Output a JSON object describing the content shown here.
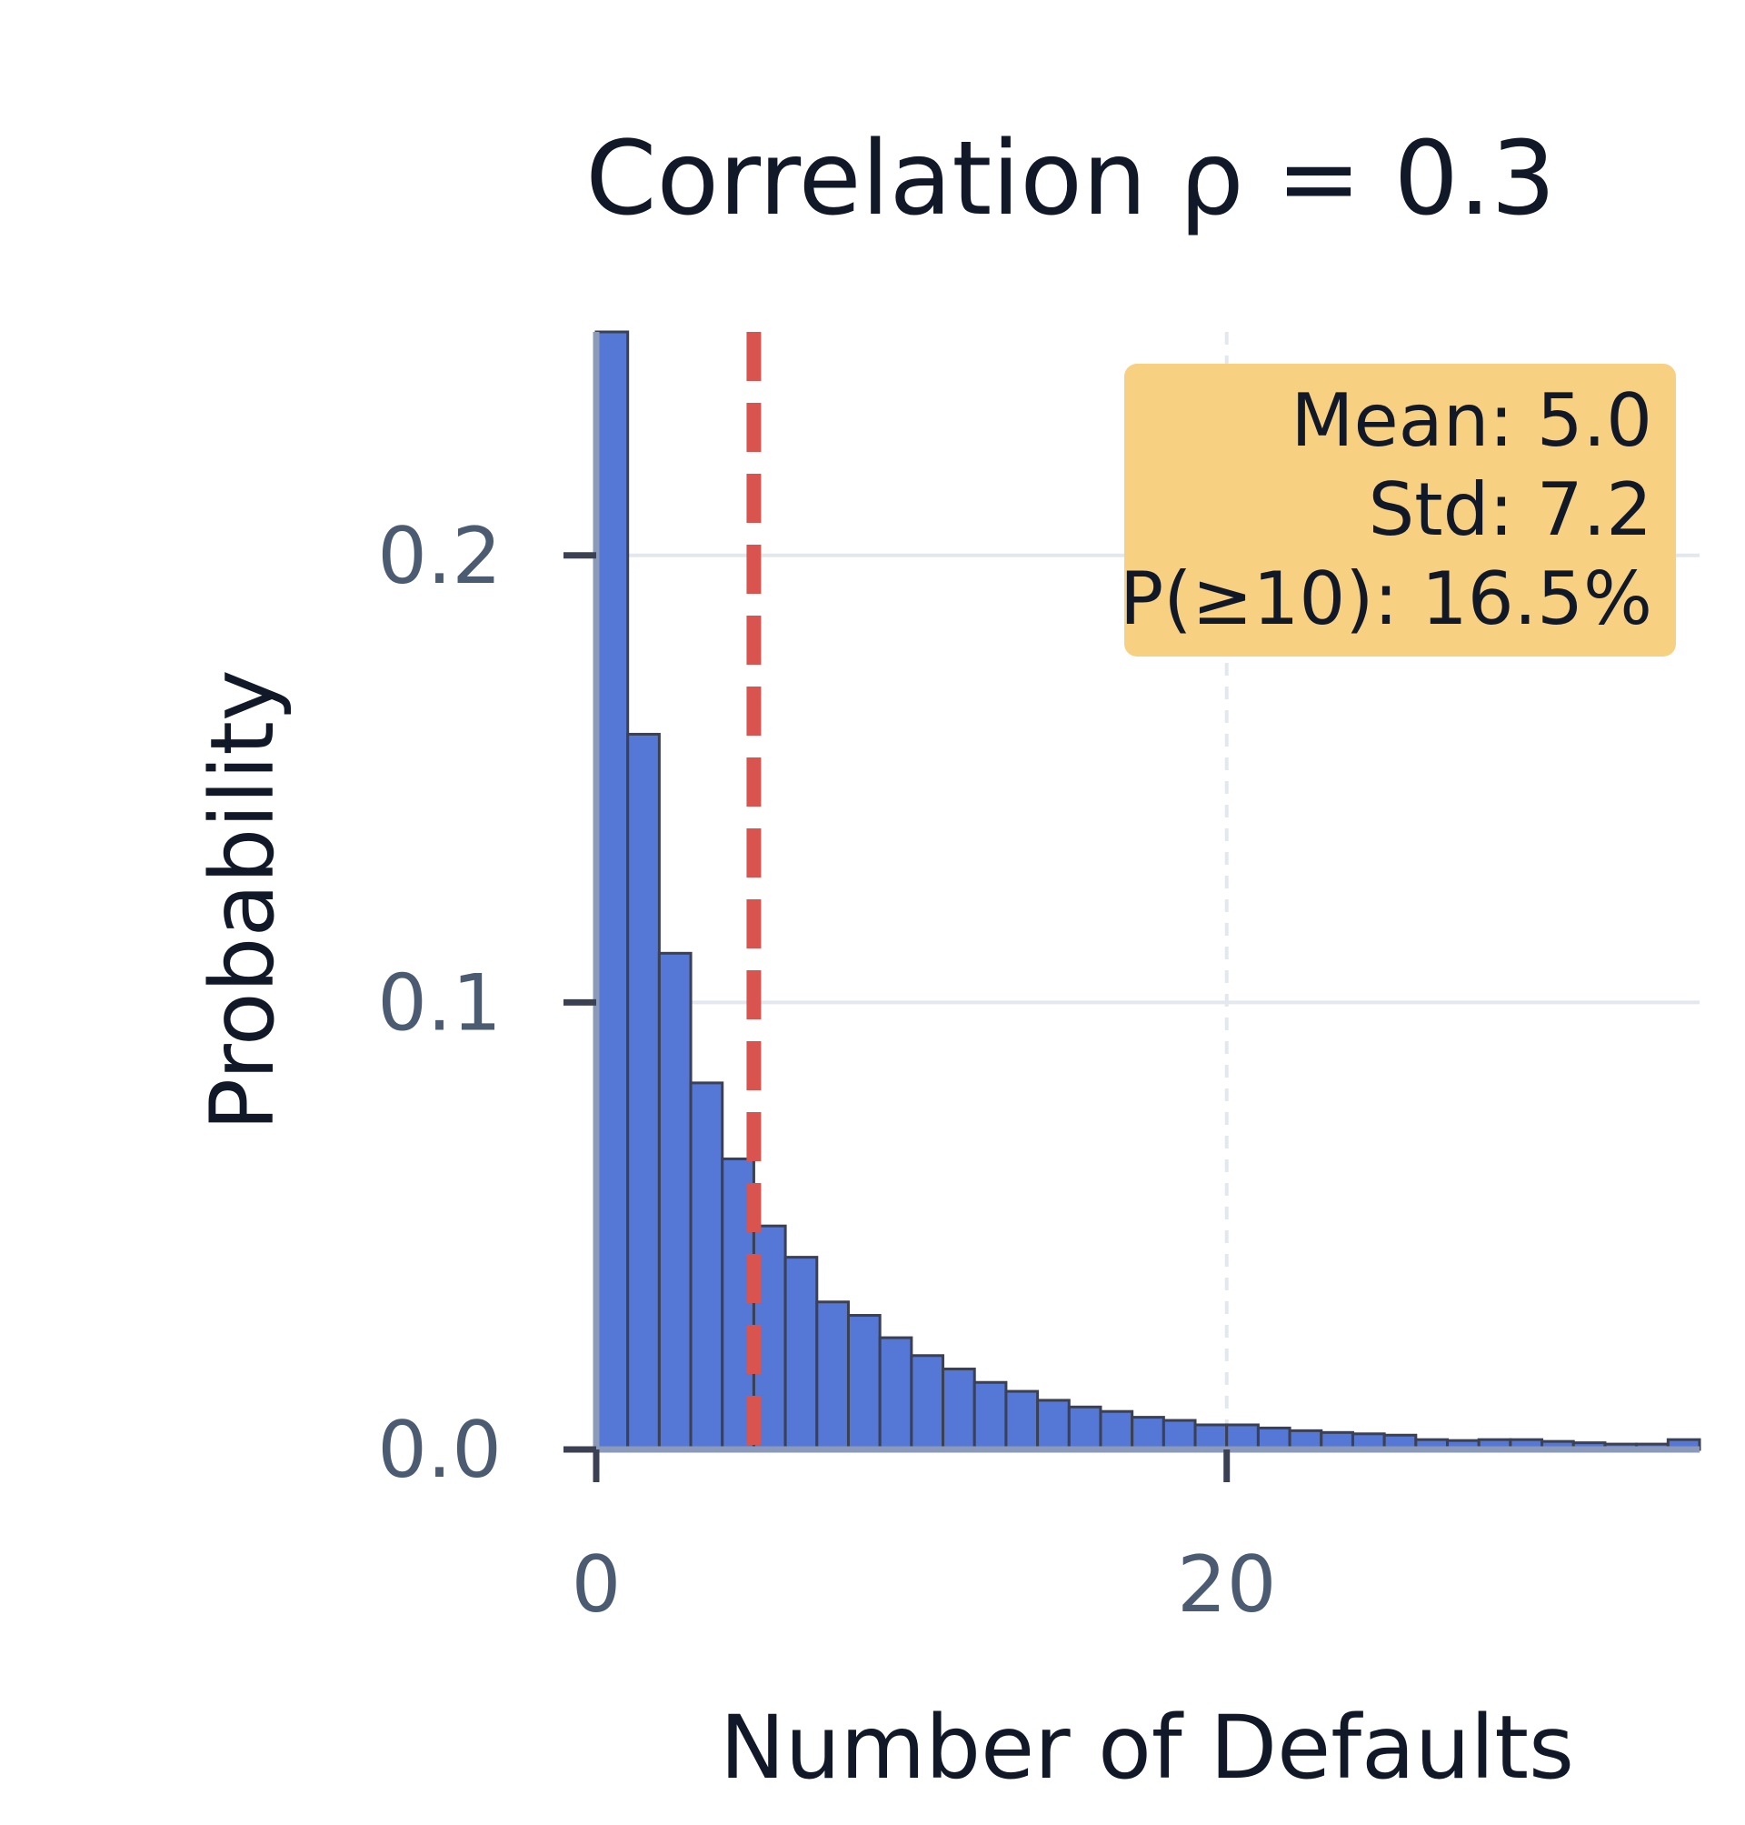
{
  "chart_data": {
    "type": "bar",
    "title": "Correlation ρ = 0.3",
    "xlabel": "Number of Defaults",
    "ylabel": "Probability",
    "xlim": [
      0,
      35
    ],
    "ylim": [
      0,
      0.25
    ],
    "x_ticks": [
      {
        "value": 0,
        "label": "0"
      },
      {
        "value": 20,
        "label": "20"
      }
    ],
    "y_ticks": [
      {
        "value": 0,
        "label": "0.0"
      },
      {
        "value": 0.1,
        "label": "0.1"
      },
      {
        "value": 0.2,
        "label": "0.2"
      }
    ],
    "grid": true,
    "bin_width": 1,
    "x": [
      0,
      1,
      2,
      3,
      4,
      5,
      6,
      7,
      8,
      9,
      10,
      11,
      12,
      13,
      14,
      15,
      16,
      17,
      18,
      19,
      20,
      21,
      22,
      23,
      24,
      25,
      26,
      27,
      28,
      29,
      30,
      31,
      32,
      33,
      34
    ],
    "values": [
      0.25,
      0.16,
      0.111,
      0.082,
      0.065,
      0.05,
      0.043,
      0.033,
      0.03,
      0.025,
      0.021,
      0.018,
      0.015,
      0.013,
      0.011,
      0.0095,
      0.0085,
      0.0072,
      0.0065,
      0.0055,
      0.0055,
      0.0048,
      0.0042,
      0.0038,
      0.0035,
      0.0032,
      0.0022,
      0.002,
      0.0022,
      0.0022,
      0.0018,
      0.0015,
      0.0012,
      0.0012,
      0.0022
    ],
    "bar_color": "#5577d6",
    "mean_line": {
      "value": 5.0,
      "color": "#d9534f",
      "style": "dashed"
    },
    "stats_box": {
      "lines": [
        "Mean: 5.0",
        "Std: 7.2",
        "P(≥10): 16.5%"
      ],
      "placement": "top-right",
      "background": "#f7d081"
    }
  }
}
